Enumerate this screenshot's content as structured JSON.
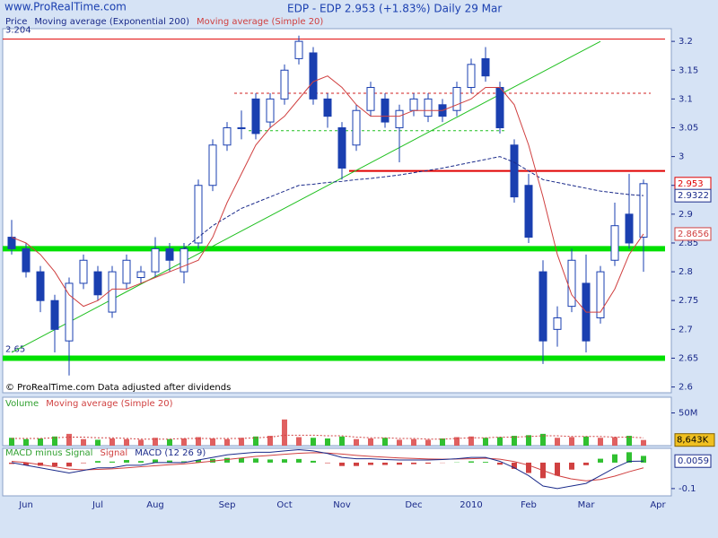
{
  "header": {
    "site": "www.ProRealTime.com",
    "title": "EDP - EDP   2.953 (+1.83%)   Daily  29 Mar",
    "footer": "© ProRealTime.com Data adjusted after dividends"
  },
  "chart_data": [
    {
      "type": "candlestick",
      "legend": [
        "Price",
        "Moving average (Exponential 200)",
        "Moving average (Simple 20)"
      ],
      "categories": [
        null,
        "Jun",
        null,
        null,
        null,
        null,
        "Jul",
        null,
        null,
        null,
        "Aug",
        null,
        null,
        null,
        null,
        "Sep",
        null,
        null,
        null,
        "Oct",
        null,
        null,
        null,
        "Nov",
        null,
        null,
        null,
        null,
        "Dec",
        null,
        null,
        null,
        "2010",
        null,
        null,
        null,
        "Feb",
        null,
        null,
        null,
        "Mar",
        null,
        null,
        null,
        null,
        "Apr"
      ],
      "open": [
        2.86,
        2.84,
        2.8,
        2.75,
        2.68,
        2.78,
        2.8,
        2.73,
        2.78,
        2.79,
        2.8,
        2.84,
        2.8,
        2.85,
        2.95,
        3.02,
        3.05,
        3.1,
        3.06,
        3.1,
        3.17,
        3.18,
        3.1,
        3.05,
        3.02,
        3.08,
        3.1,
        3.05,
        3.08,
        3.07,
        3.09,
        3.08,
        3.12,
        3.17,
        3.12,
        3.02,
        2.95,
        2.8,
        2.7,
        2.74,
        2.78,
        2.72,
        2.82,
        2.9,
        2.86,
        null
      ],
      "high": [
        2.89,
        2.85,
        2.81,
        2.76,
        2.79,
        2.83,
        2.81,
        2.81,
        2.83,
        2.81,
        2.86,
        2.85,
        2.85,
        2.96,
        3.03,
        3.06,
        3.08,
        3.11,
        3.11,
        3.16,
        3.21,
        3.19,
        3.11,
        3.06,
        3.09,
        3.13,
        3.11,
        3.09,
        3.11,
        3.11,
        3.1,
        3.13,
        3.17,
        3.19,
        3.13,
        3.03,
        2.97,
        2.82,
        2.74,
        2.84,
        2.83,
        2.81,
        2.92,
        2.97,
        2.96,
        null
      ],
      "low": [
        2.83,
        2.79,
        2.73,
        2.66,
        2.62,
        2.77,
        2.75,
        2.72,
        2.77,
        2.78,
        2.79,
        2.8,
        2.78,
        2.84,
        2.94,
        3.01,
        3.03,
        3.03,
        3.05,
        3.09,
        3.16,
        3.09,
        3.05,
        2.96,
        3.01,
        3.07,
        3.05,
        2.99,
        3.07,
        3.06,
        3.06,
        3.07,
        3.11,
        3.13,
        3.04,
        2.92,
        2.85,
        2.64,
        2.67,
        2.73,
        2.66,
        2.71,
        2.81,
        2.84,
        2.8,
        null
      ],
      "close": [
        2.84,
        2.8,
        2.75,
        2.7,
        2.78,
        2.82,
        2.76,
        2.8,
        2.82,
        2.8,
        2.84,
        2.82,
        2.84,
        2.95,
        3.02,
        3.05,
        3.05,
        3.04,
        3.1,
        3.15,
        3.2,
        3.1,
        3.07,
        2.98,
        3.08,
        3.12,
        3.06,
        3.08,
        3.1,
        3.1,
        3.07,
        3.12,
        3.16,
        3.14,
        3.05,
        2.93,
        2.86,
        2.68,
        2.72,
        2.82,
        2.68,
        2.8,
        2.88,
        2.85,
        2.953,
        null
      ],
      "colors": {
        "up": "#ffffff",
        "down": "#1a3fb0",
        "outline": "#1a3fb0"
      },
      "series": [
        {
          "name": "Moving average (Exponential 200)",
          "color": "#1a2a8a",
          "values": [
            null,
            null,
            null,
            null,
            null,
            null,
            null,
            null,
            null,
            null,
            null,
            null,
            2.84,
            2.86,
            2.88,
            2.895,
            2.91,
            2.92,
            2.93,
            2.94,
            2.95,
            2.952,
            2.955,
            2.957,
            2.96,
            2.962,
            2.965,
            2.968,
            2.972,
            2.976,
            2.98,
            2.985,
            2.99,
            2.995,
            3.0,
            2.99,
            2.975,
            2.96,
            2.955,
            2.95,
            2.945,
            2.94,
            2.937,
            2.934,
            2.9322,
            null
          ]
        },
        {
          "name": "Moving average (Simple 20)",
          "color": "#d04040",
          "values": [
            2.86,
            2.85,
            2.83,
            2.8,
            2.76,
            2.74,
            2.75,
            2.77,
            2.77,
            2.78,
            2.79,
            2.8,
            2.81,
            2.82,
            2.86,
            2.92,
            2.97,
            3.02,
            3.05,
            3.07,
            3.1,
            3.13,
            3.14,
            3.12,
            3.09,
            3.07,
            3.07,
            3.07,
            3.08,
            3.08,
            3.08,
            3.09,
            3.1,
            3.12,
            3.12,
            3.09,
            3.02,
            2.93,
            2.83,
            2.76,
            2.73,
            2.73,
            2.77,
            2.83,
            2.8656,
            null
          ]
        }
      ],
      "levels": [
        {
          "value": 3.204,
          "color": "#e00000",
          "width": 1,
          "dashed": false,
          "start": 0,
          "end": 46,
          "labeled": true
        },
        {
          "value": 3.11,
          "color": "#d02020",
          "width": 1,
          "dashed": true,
          "start": 16,
          "end": 45,
          "labeled": false
        },
        {
          "value": 3.045,
          "color": "#20c020",
          "width": 1,
          "dashed": true,
          "start": 17,
          "end": 35,
          "labeled": false
        },
        {
          "value": 2.975,
          "color": "#e00000",
          "width": 2,
          "dashed": false,
          "start": 24,
          "end": 46,
          "labeled": false
        },
        {
          "value": 2.84,
          "color": "#00e000",
          "width": 6,
          "dashed": false,
          "start": 0,
          "end": 46,
          "labeled": false
        },
        {
          "value": 2.65,
          "color": "#00e000",
          "width": 6,
          "dashed": false,
          "start": 0,
          "end": 46,
          "labeled": true
        }
      ],
      "trendline": {
        "color": "#20c020",
        "x": [
          0,
          41
        ],
        "y": [
          2.66,
          3.2
        ]
      },
      "ylim": [
        2.59,
        3.222
      ],
      "yticks": [
        2.6,
        2.65,
        2.7,
        2.75,
        2.8,
        2.85,
        2.9,
        2.95,
        3,
        3.05,
        3.1,
        3.15,
        3.2
      ]
    },
    {
      "type": "volume",
      "legend": [
        "Volume",
        "Moving average (Simple 20)"
      ],
      "values": [
        12000000,
        10000000,
        11000000,
        14000000,
        18000000,
        10000000,
        9000000,
        11000000,
        10000000,
        9000000,
        12000000,
        10000000,
        11000000,
        13000000,
        11000000,
        10000000,
        12000000,
        14000000,
        15000000,
        40000000,
        13000000,
        12000000,
        11000000,
        14000000,
        10000000,
        11000000,
        12000000,
        9000000,
        10000000,
        9000000,
        11000000,
        13000000,
        14000000,
        12000000,
        13000000,
        15000000,
        16000000,
        18000000,
        12000000,
        13000000,
        14000000,
        12000000,
        13000000,
        15000000,
        8643000,
        null
      ],
      "value_labels": [
        null,
        null,
        null,
        null,
        null,
        null,
        null,
        null,
        null,
        null,
        null,
        null,
        null,
        null,
        null,
        null,
        null,
        null,
        null,
        null,
        null,
        null,
        null,
        null,
        null,
        null,
        null,
        null,
        null,
        null,
        null,
        null,
        null,
        null,
        null,
        null,
        null,
        null,
        null,
        null,
        null,
        null,
        null,
        null,
        "8,643K",
        null
      ],
      "colors": {
        "up": "#e06060",
        "down": "#30c030"
      },
      "series": [
        {
          "name": "Moving average (Simple 20)",
          "color": "#d04040",
          "values": [
            11000000,
            11000000,
            11000000,
            12000000,
            13000000,
            13000000,
            12000000,
            12000000,
            11000000,
            10000000,
            10000000,
            10000000,
            11000000,
            11000000,
            11000000,
            11000000,
            11000000,
            12000000,
            13000000,
            16000000,
            16000000,
            16000000,
            15000000,
            15000000,
            13000000,
            12000000,
            12000000,
            11000000,
            11000000,
            10000000,
            10000000,
            11000000,
            12000000,
            12000000,
            13000000,
            13000000,
            14000000,
            15000000,
            15000000,
            14000000,
            14000000,
            14000000,
            13000000,
            13000000,
            12000000,
            null
          ]
        }
      ],
      "ylim": [
        0,
        74000000
      ],
      "yticks": [
        {
          "value": 50000000,
          "label": "50M"
        }
      ]
    },
    {
      "type": "macd",
      "legend": [
        "MACD minus Signal",
        "Signal",
        "MACD (12 26 9)"
      ],
      "histogram": {
        "name": "MACD minus Signal",
        "color": "#30c030",
        "neg_color": "#d04040",
        "values": [
          -0.005,
          -0.01,
          -0.012,
          -0.014,
          -0.015,
          -0.002,
          0.006,
          0.004,
          0.01,
          0.006,
          0.012,
          0.008,
          0.005,
          0.01,
          0.014,
          0.018,
          0.017,
          0.016,
          0.012,
          0.013,
          0.014,
          0.007,
          -0.002,
          -0.013,
          -0.013,
          -0.009,
          -0.009,
          -0.008,
          -0.006,
          -0.004,
          -0.001,
          0.001,
          0.005,
          0.003,
          -0.008,
          -0.024,
          -0.04,
          -0.06,
          -0.05,
          -0.027,
          -0.01,
          0.015,
          0.032,
          0.04,
          0.0259,
          null
        ]
      },
      "series": [
        {
          "name": "Signal",
          "color": "#d04040",
          "values": [
            0.005,
            0,
            -0.008,
            -0.016,
            -0.025,
            -0.028,
            -0.026,
            -0.024,
            -0.02,
            -0.016,
            -0.012,
            -0.008,
            -0.005,
            0,
            0.006,
            0.012,
            0.018,
            0.024,
            0.028,
            0.032,
            0.036,
            0.038,
            0.037,
            0.033,
            0.028,
            0.024,
            0.021,
            0.018,
            0.016,
            0.014,
            0.013,
            0.014,
            0.015,
            0.017,
            0.013,
            0.004,
            -0.01,
            -0.03,
            -0.05,
            -0.063,
            -0.07,
            -0.065,
            -0.052,
            -0.035,
            -0.02,
            null
          ]
        },
        {
          "name": "MACD (12 26 9)",
          "color": "#1a2a8a",
          "values": [
            0,
            -0.01,
            -0.02,
            -0.03,
            -0.04,
            -0.03,
            -0.02,
            -0.02,
            -0.01,
            -0.01,
            0,
            0,
            0,
            0.01,
            0.02,
            0.03,
            0.035,
            0.04,
            0.04,
            0.045,
            0.05,
            0.045,
            0.035,
            0.02,
            0.015,
            0.015,
            0.012,
            0.01,
            0.01,
            0.01,
            0.012,
            0.015,
            0.02,
            0.02,
            0.005,
            -0.02,
            -0.05,
            -0.09,
            -0.1,
            -0.09,
            -0.08,
            -0.05,
            -0.02,
            0.005,
            0.0059,
            null
          ]
        }
      ],
      "ylim": [
        -0.128,
        0.055
      ],
      "yticks": [
        -0.1
      ]
    }
  ]
}
